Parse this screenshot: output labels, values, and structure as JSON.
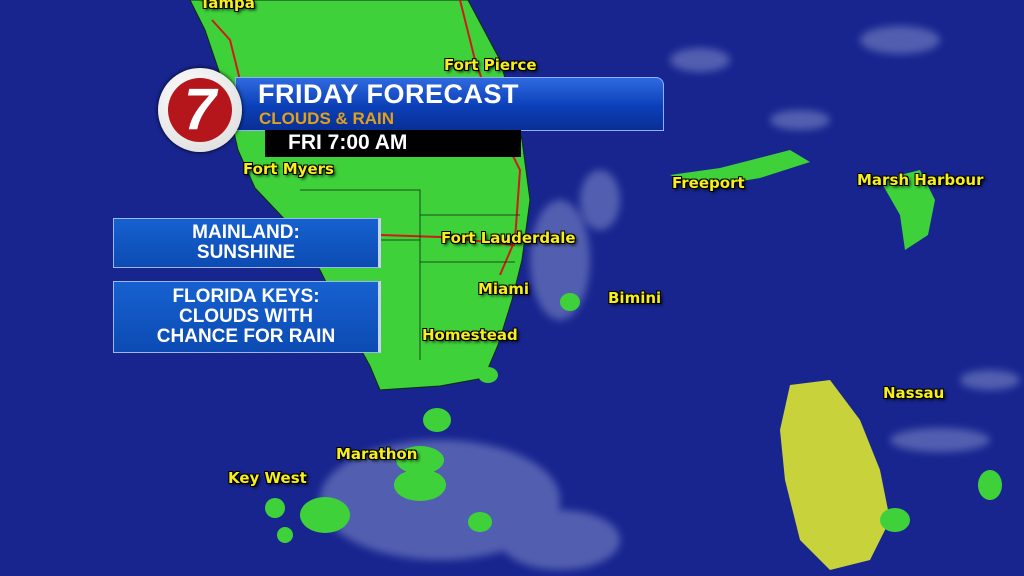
{
  "header": {
    "logo_text": "7",
    "title": "FRIDAY FORECAST",
    "subtitle": "CLOUDS & RAIN",
    "time": "FRI  7:00 AM"
  },
  "info_boxes": [
    {
      "lines": [
        "MAINLAND:",
        "SUNSHINE"
      ]
    },
    {
      "lines": [
        "FLORIDA KEYS:",
        "CLOUDS WITH",
        "CHANCE FOR RAIN"
      ]
    }
  ],
  "cities": {
    "tampa": "Tampa",
    "fort_pierce": "Fort Pierce",
    "fort_myers": "Fort Myers",
    "fort_lauderdale": "Fort Lauderdale",
    "miami": "Miami",
    "homestead": "Homestead",
    "bimini": "Bimini",
    "freeport": "Freeport",
    "marsh_harbour": "Marsh Harbour",
    "nassau": "Nassau",
    "marathon": "Marathon",
    "key_west": "Key West"
  },
  "colors": {
    "ocean": "#18258f",
    "land": "#3fd13a",
    "label": "#f6ee1e",
    "brand_red": "#b5161b",
    "subtitle": "#e0a11a"
  }
}
